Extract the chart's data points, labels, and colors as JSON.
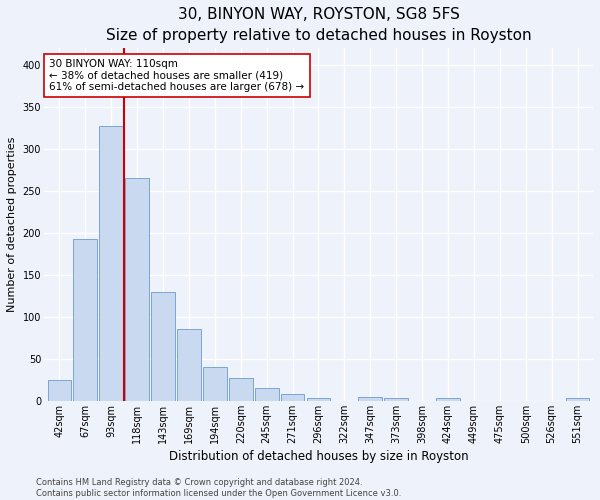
{
  "title": "30, BINYON WAY, ROYSTON, SG8 5FS",
  "subtitle": "Size of property relative to detached houses in Royston",
  "xlabel": "Distribution of detached houses by size in Royston",
  "ylabel": "Number of detached properties",
  "categories": [
    "42sqm",
    "67sqm",
    "93sqm",
    "118sqm",
    "143sqm",
    "169sqm",
    "194sqm",
    "220sqm",
    "245sqm",
    "271sqm",
    "296sqm",
    "322sqm",
    "347sqm",
    "373sqm",
    "398sqm",
    "424sqm",
    "449sqm",
    "475sqm",
    "500sqm",
    "526sqm",
    "551sqm"
  ],
  "values": [
    25,
    193,
    328,
    265,
    130,
    86,
    40,
    27,
    15,
    8,
    4,
    0,
    5,
    3,
    0,
    4,
    0,
    0,
    0,
    0,
    3
  ],
  "bar_color": "#c9d9f0",
  "bar_edge_color": "#7ba4d4",
  "vline_color": "#cc0000",
  "vline_x": 2.5,
  "annotation_line1": "30 BINYON WAY: 110sqm",
  "annotation_line2": "← 38% of detached houses are smaller (419)",
  "annotation_line3": "61% of semi-detached houses are larger (678) →",
  "annotation_box_color": "#cc0000",
  "annotation_box_bg": "#ffffff",
  "ylim": [
    0,
    420
  ],
  "yticks": [
    0,
    50,
    100,
    150,
    200,
    250,
    300,
    350,
    400
  ],
  "title_fontsize": 11,
  "subtitle_fontsize": 9.5,
  "xlabel_fontsize": 8.5,
  "ylabel_fontsize": 8,
  "tick_fontsize": 7,
  "annotation_fontsize": 7.5,
  "footer_text": "Contains HM Land Registry data © Crown copyright and database right 2024.\nContains public sector information licensed under the Open Government Licence v3.0.",
  "footer_fontsize": 6,
  "background_color": "#eef2fb",
  "grid_color": "#ffffff"
}
